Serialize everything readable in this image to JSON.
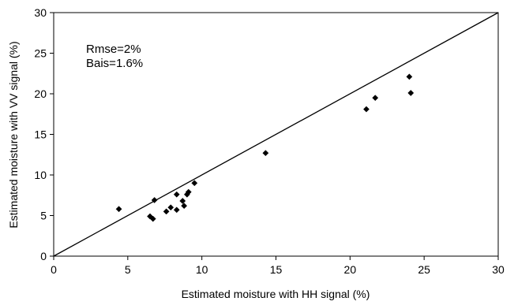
{
  "chart_data": {
    "type": "scatter",
    "title": "",
    "xlabel": "Estimated moisture with HH signal (%)",
    "ylabel": "Estimated moisture with VV signal (%)",
    "xlim": [
      0,
      30
    ],
    "ylim": [
      0,
      30
    ],
    "xticks": [
      "0",
      "5",
      "10",
      "15",
      "20",
      "25",
      "30"
    ],
    "yticks": [
      "0",
      "5",
      "10",
      "15",
      "20",
      "25",
      "30"
    ],
    "grid": false,
    "reference_line": {
      "from": [
        0,
        0
      ],
      "to": [
        30,
        30
      ]
    },
    "annotations": [
      "Rmse=2%",
      "Bais=1.6%"
    ],
    "marker": "diamond",
    "color": "#000000",
    "points": [
      {
        "x": 4.4,
        "y": 5.8
      },
      {
        "x": 6.5,
        "y": 4.9
      },
      {
        "x": 6.7,
        "y": 4.6
      },
      {
        "x": 6.8,
        "y": 6.9
      },
      {
        "x": 7.6,
        "y": 5.5
      },
      {
        "x": 7.9,
        "y": 6.0
      },
      {
        "x": 8.3,
        "y": 7.6
      },
      {
        "x": 8.3,
        "y": 5.7
      },
      {
        "x": 8.7,
        "y": 6.8
      },
      {
        "x": 8.8,
        "y": 6.2
      },
      {
        "x": 9.0,
        "y": 7.6
      },
      {
        "x": 9.1,
        "y": 7.9
      },
      {
        "x": 9.5,
        "y": 9.0
      },
      {
        "x": 14.3,
        "y": 12.7
      },
      {
        "x": 21.1,
        "y": 18.1
      },
      {
        "x": 21.7,
        "y": 19.5
      },
      {
        "x": 24.0,
        "y": 22.1
      },
      {
        "x": 24.1,
        "y": 20.1
      }
    ]
  }
}
